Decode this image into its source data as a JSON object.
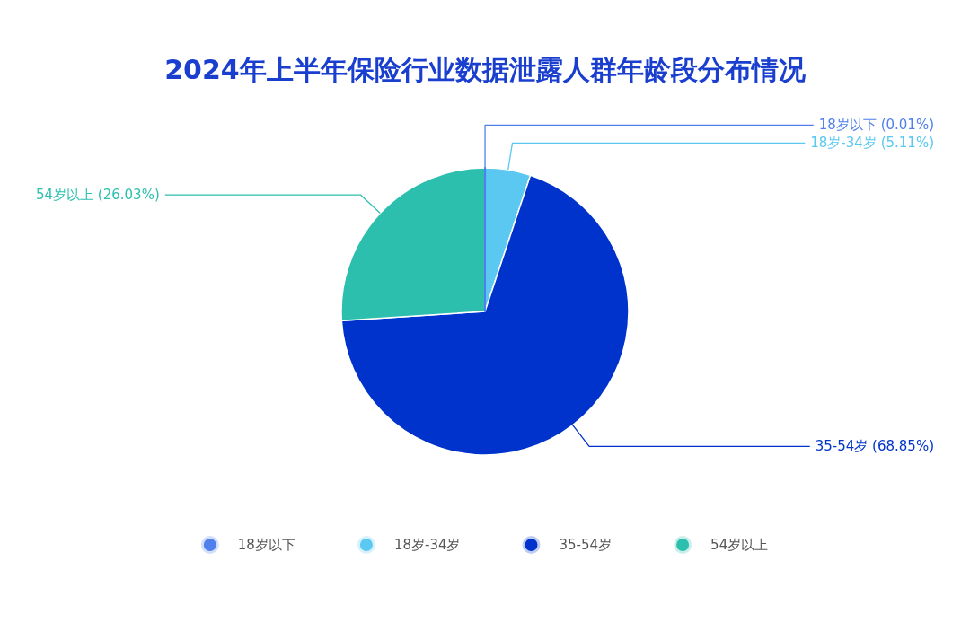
{
  "chart_data": {
    "type": "pie",
    "title": "2024年上半年保险行业数据泄露人群年龄段分布情况",
    "categories": [
      "18岁以下",
      "18岁-34岁",
      "35-54岁",
      "54岁以上"
    ],
    "values": [
      0.01,
      5.11,
      68.85,
      26.03
    ],
    "colors": [
      "#5080ec",
      "#5ac8f0",
      "#0033cc",
      "#2dbfae"
    ],
    "value_labels": [
      "18岁以下 (0.01%)",
      "18岁-34岁 (5.11%)",
      "35-54岁 (68.85%)",
      "54岁以上 (26.03%)"
    ],
    "legend": "bottom"
  }
}
